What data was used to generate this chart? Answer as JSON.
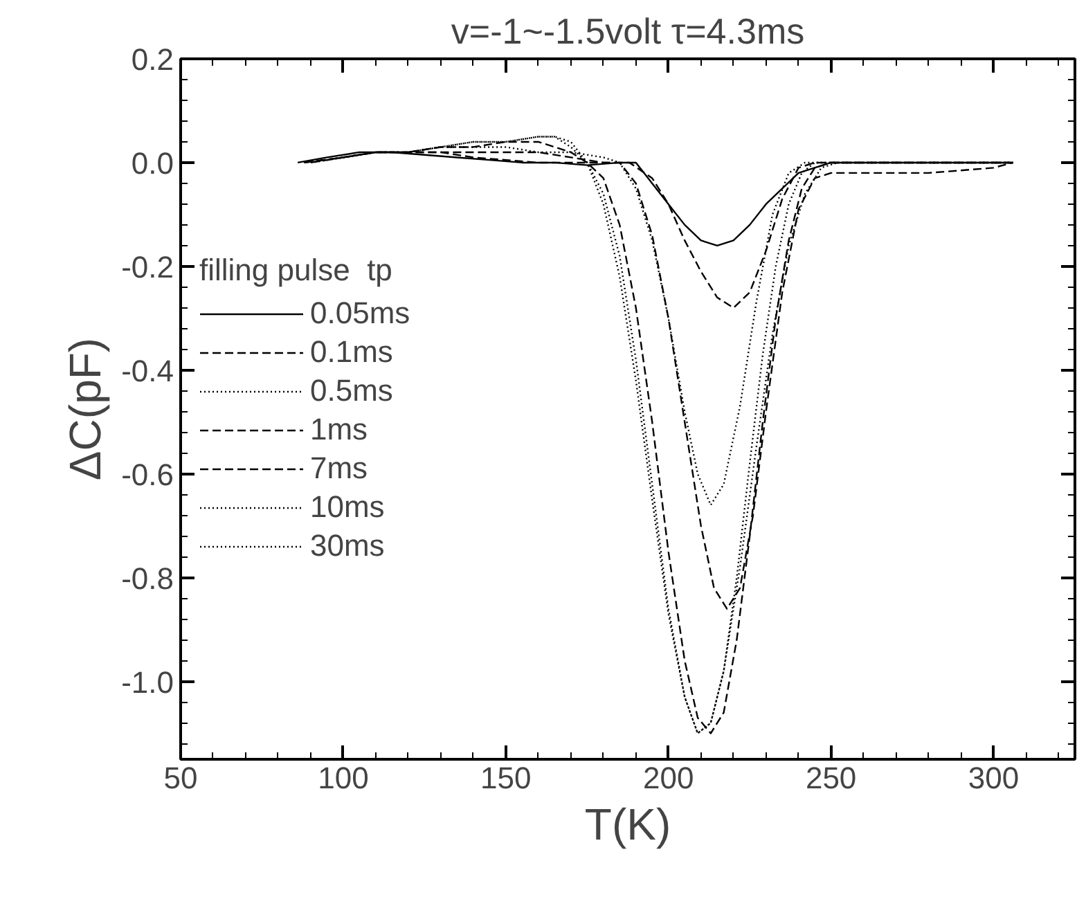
{
  "chart_data": {
    "type": "line",
    "title": "v=-1~-1.5volt τ=4.3ms",
    "xlabel": "T(K)",
    "ylabel": "ΔC(pF)",
    "legend_title": "filling pulse  tp",
    "xlim": [
      50,
      325
    ],
    "ylim": [
      -1.15,
      0.2
    ],
    "xticks": [
      50,
      100,
      150,
      200,
      250,
      300
    ],
    "yticks": [
      {
        "value": 0.2,
        "label": "0.2"
      },
      {
        "value": 0.0,
        "label": "0.0"
      },
      {
        "value": -0.2,
        "label": "-0.2"
      },
      {
        "value": -0.4,
        "label": "-0.4"
      },
      {
        "value": -0.6,
        "label": "-0.6"
      },
      {
        "value": -0.8,
        "label": "-0.8"
      },
      {
        "value": -1.0,
        "label": "-1.0"
      }
    ],
    "grid": false,
    "legend": "left",
    "marker": "none",
    "series": [
      {
        "name": "0.05ms",
        "color": "#000000",
        "line_style": "solid",
        "x": [
          86,
          95,
          105,
          115,
          125,
          135,
          145,
          155,
          165,
          175,
          185,
          190,
          195,
          200,
          205,
          210,
          215,
          220,
          225,
          230,
          235,
          240,
          245,
          250,
          255,
          270,
          290,
          305
        ],
        "values": [
          0.0,
          0.01,
          0.02,
          0.02,
          0.015,
          0.01,
          0.005,
          0.0,
          0.0,
          -0.005,
          0.0,
          0.0,
          -0.04,
          -0.08,
          -0.12,
          -0.15,
          -0.16,
          -0.15,
          -0.12,
          -0.08,
          -0.05,
          -0.02,
          -0.01,
          0.0,
          0.0,
          0.0,
          0.0,
          0.0
        ]
      },
      {
        "name": "0.1ms",
        "color": "#000000",
        "line_style": "dashed",
        "x": [
          88,
          100,
          110,
          120,
          130,
          140,
          150,
          160,
          170,
          180,
          188,
          195,
          200,
          205,
          210,
          215,
          220,
          225,
          230,
          235,
          240,
          245,
          250,
          260,
          280,
          300,
          306
        ],
        "values": [
          0.0,
          0.01,
          0.02,
          0.02,
          0.02,
          0.01,
          0.005,
          0.0,
          0.0,
          0.0,
          0.0,
          -0.03,
          -0.08,
          -0.15,
          -0.21,
          -0.26,
          -0.28,
          -0.25,
          -0.17,
          -0.07,
          -0.01,
          0.0,
          0.0,
          0.0,
          0.0,
          0.0,
          0.0
        ]
      },
      {
        "name": "0.5ms",
        "color": "#000000",
        "line_style": "dotted",
        "x": [
          90,
          100,
          110,
          120,
          130,
          140,
          150,
          160,
          170,
          180,
          185,
          190,
          195,
          200,
          205,
          209,
          213,
          217,
          222,
          227,
          232,
          237,
          242,
          250,
          270,
          290,
          306
        ],
        "values": [
          0.0,
          0.01,
          0.02,
          0.02,
          0.03,
          0.03,
          0.03,
          0.02,
          0.02,
          0.01,
          0.0,
          -0.05,
          -0.15,
          -0.3,
          -0.48,
          -0.6,
          -0.66,
          -0.62,
          -0.47,
          -0.27,
          -0.1,
          -0.02,
          0.0,
          0.0,
          0.0,
          0.0,
          0.0
        ]
      },
      {
        "name": "1ms",
        "color": "#000000",
        "line_style": "dashed",
        "x": [
          88,
          100,
          110,
          120,
          130,
          140,
          150,
          160,
          170,
          180,
          185,
          190,
          195,
          200,
          205,
          210,
          214,
          218,
          222,
          226,
          230,
          235,
          240,
          245,
          250,
          260,
          280,
          300,
          306
        ],
        "values": [
          0.0,
          0.01,
          0.02,
          0.02,
          0.02,
          0.02,
          0.02,
          0.02,
          0.01,
          0.0,
          0.0,
          -0.04,
          -0.14,
          -0.3,
          -0.5,
          -0.7,
          -0.82,
          -0.86,
          -0.82,
          -0.68,
          -0.48,
          -0.25,
          -0.09,
          -0.03,
          -0.02,
          -0.02,
          -0.02,
          -0.01,
          0.0
        ]
      },
      {
        "name": "7ms",
        "color": "#000000",
        "line_style": "dashed",
        "x": [
          90,
          100,
          110,
          120,
          130,
          140,
          150,
          160,
          170,
          175,
          180,
          185,
          190,
          195,
          200,
          205,
          209,
          213,
          217,
          221,
          225,
          229,
          233,
          237,
          241,
          245,
          250,
          260,
          280,
          300,
          306
        ],
        "values": [
          0.0,
          0.01,
          0.02,
          0.02,
          0.03,
          0.03,
          0.04,
          0.04,
          0.02,
          0.0,
          -0.03,
          -0.12,
          -0.28,
          -0.5,
          -0.75,
          -0.96,
          -1.07,
          -1.1,
          -1.06,
          -0.92,
          -0.72,
          -0.5,
          -0.3,
          -0.15,
          -0.05,
          -0.01,
          0.0,
          0.0,
          0.0,
          0.0,
          0.0
        ]
      },
      {
        "name": "10ms",
        "color": "#000000",
        "line_style": "dotted",
        "x": [
          90,
          100,
          110,
          120,
          130,
          140,
          150,
          160,
          165,
          170,
          175,
          180,
          185,
          190,
          195,
          200,
          205,
          209,
          213,
          217,
          221,
          225,
          229,
          233,
          237,
          241,
          245,
          250,
          260,
          280,
          300,
          306
        ],
        "values": [
          0.0,
          0.01,
          0.02,
          0.02,
          0.03,
          0.04,
          0.04,
          0.05,
          0.05,
          0.03,
          0.0,
          -0.06,
          -0.18,
          -0.38,
          -0.62,
          -0.86,
          -1.03,
          -1.1,
          -1.08,
          -0.98,
          -0.8,
          -0.58,
          -0.37,
          -0.2,
          -0.08,
          -0.02,
          0.0,
          0.0,
          0.0,
          0.0,
          0.0,
          0.0
        ]
      },
      {
        "name": "30ms",
        "color": "#000000",
        "line_style": "dotted",
        "x": [
          88,
          100,
          110,
          120,
          130,
          140,
          150,
          160,
          165,
          170,
          175,
          180,
          185,
          190,
          195,
          200,
          205,
          209,
          213,
          217,
          222,
          227,
          232,
          237,
          242,
          247,
          252,
          260,
          280,
          300,
          306
        ],
        "values": [
          0.0,
          0.01,
          0.02,
          0.02,
          0.03,
          0.04,
          0.04,
          0.05,
          0.05,
          0.04,
          0.0,
          -0.08,
          -0.22,
          -0.42,
          -0.65,
          -0.87,
          -1.03,
          -1.1,
          -1.08,
          -0.98,
          -0.78,
          -0.55,
          -0.33,
          -0.16,
          -0.06,
          -0.01,
          0.0,
          0.0,
          0.0,
          0.0,
          0.0
        ]
      }
    ]
  }
}
